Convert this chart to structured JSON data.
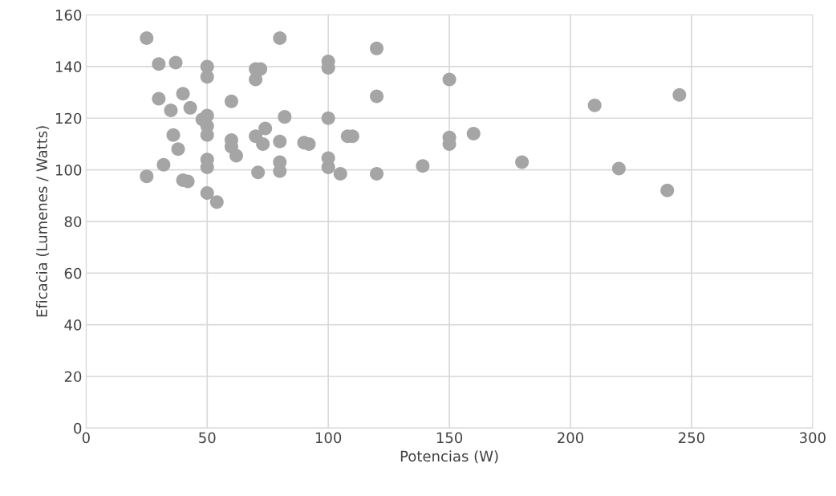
{
  "chart_data": {
    "type": "scatter",
    "xlabel": "Potencias (W)",
    "ylabel": "Eficacia (Lumenes / Watts)",
    "x": [
      25,
      30,
      37,
      50,
      50,
      70,
      72,
      70,
      80,
      100,
      100,
      120,
      120,
      150,
      30,
      40,
      35,
      43,
      60,
      48,
      50,
      50,
      82,
      100,
      36,
      38,
      50,
      60,
      60,
      62,
      70,
      74,
      73,
      80,
      90,
      92,
      108,
      110,
      100,
      100,
      105,
      80,
      80,
      71,
      120,
      139,
      150,
      150,
      160,
      180,
      210,
      245,
      220,
      240,
      25,
      32,
      40,
      42,
      50,
      50,
      50,
      54
    ],
    "values": [
      151,
      141,
      141.5,
      140,
      136,
      139,
      139,
      135,
      151,
      142,
      139.5,
      147,
      128.5,
      135,
      127.5,
      129.5,
      123,
      124,
      126.5,
      119.5,
      121,
      117,
      120.5,
      120,
      113.5,
      108,
      113.5,
      111.5,
      109,
      105.5,
      113,
      116,
      110,
      111,
      110.5,
      110,
      113,
      113,
      104.5,
      101,
      98.5,
      103,
      99.5,
      99,
      98.5,
      101.5,
      112.5,
      110,
      114,
      103,
      125,
      129,
      100.5,
      92,
      97.5,
      102,
      96,
      95.5,
      104,
      101,
      91,
      87.5
    ],
    "color": "#a5a5a5",
    "marker": "circle",
    "xlim": [
      0,
      300
    ],
    "xticks": [
      0,
      50,
      100,
      150,
      200,
      250,
      300
    ],
    "ylim": [
      0,
      160
    ],
    "yticks": [
      0,
      20,
      40,
      60,
      80,
      100,
      120,
      140,
      160
    ],
    "grid": true
  }
}
